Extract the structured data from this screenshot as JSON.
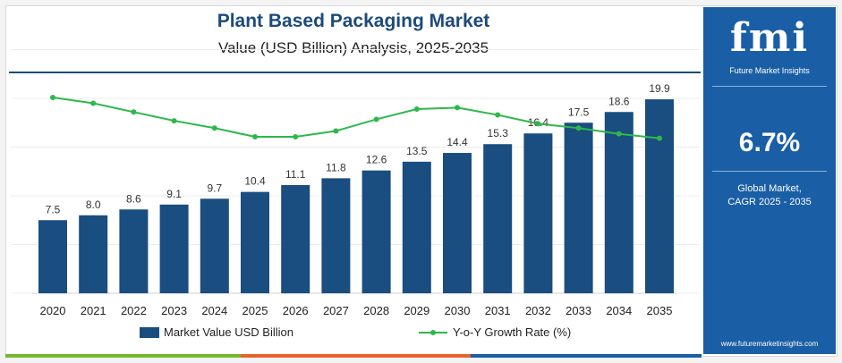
{
  "header": {
    "title": "Plant Based Packaging Market",
    "subtitle": "Value (USD Billion) Analysis, 2025-2035"
  },
  "sidebar": {
    "logo_text": "fmi",
    "logo_subtitle": "Future Market Insights",
    "cagr_value": "6.7%",
    "cagr_label_line1": "Global Market,",
    "cagr_label_line2": "CAGR 2025 - 2035",
    "website": "www.futuremarketinsights.com"
  },
  "colors": {
    "bar": "#1a4d80",
    "line": "#2db84a",
    "sidebar_bg": "#1a5fa6",
    "title": "#1c4b7a"
  },
  "chart_data": {
    "type": "bar",
    "categories": [
      "2020",
      "2021",
      "2022",
      "2023",
      "2024",
      "2025",
      "2026",
      "2027",
      "2028",
      "2029",
      "2030",
      "2031",
      "2032",
      "2033",
      "2034",
      "2035"
    ],
    "series": [
      {
        "name": "Market Value USD Billion",
        "type": "bar",
        "values": [
          7.5,
          8.0,
          8.6,
          9.1,
          9.7,
          10.4,
          11.1,
          11.8,
          12.6,
          13.5,
          14.4,
          15.3,
          16.4,
          17.5,
          18.6,
          19.9
        ]
      },
      {
        "name": "Y-o-Y Growth Rate (%)",
        "type": "line",
        "values": [
          8.5,
          8.1,
          7.5,
          6.9,
          6.4,
          5.8,
          5.8,
          6.2,
          7.0,
          7.7,
          7.8,
          7.3,
          6.7,
          6.4,
          6.0,
          5.7
        ]
      }
    ],
    "data_labels": [
      "7.5",
      "8.0",
      "8.6",
      "9.1",
      "9.7",
      "10.4",
      "11.1",
      "11.8",
      "12.6",
      "13.5",
      "14.4",
      "15.3",
      "16.4",
      "17.5",
      "18.6",
      "19.9"
    ],
    "legend": [
      "Market Value USD Billion",
      "Y-o-Y Growth Rate (%)"
    ],
    "legend_position": "bottom",
    "ylim": [
      0,
      25
    ],
    "grid": true
  }
}
